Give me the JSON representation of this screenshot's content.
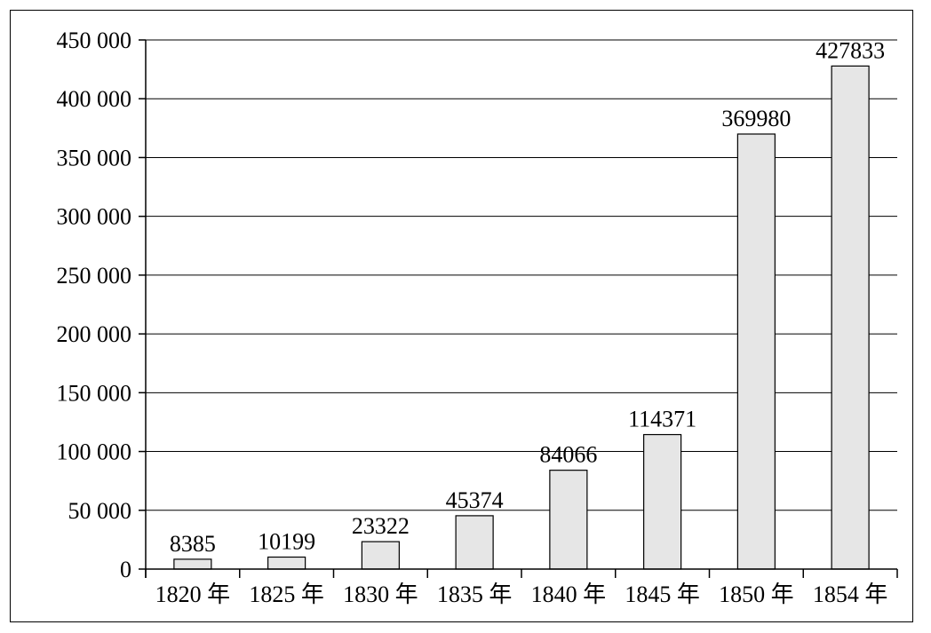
{
  "chart_data": {
    "type": "bar",
    "categories": [
      "1820 年",
      "1825 年",
      "1830 年",
      "1835 年",
      "1840 年",
      "1845 年",
      "1850 年",
      "1854 年"
    ],
    "values": [
      8385,
      10199,
      23322,
      45374,
      84066,
      114371,
      369980,
      427833
    ],
    "data_labels": [
      "8385",
      "10199",
      "23322",
      "45374",
      "84066",
      "114371",
      "369980",
      "427833"
    ],
    "y_ticks": [
      0,
      50000,
      100000,
      150000,
      200000,
      250000,
      300000,
      350000,
      400000,
      450000
    ],
    "y_tick_labels": [
      "0",
      "50 000",
      "100 000",
      "150 000",
      "200 000",
      "250 000",
      "300 000",
      "350 000",
      "400 000",
      "450 000"
    ],
    "ylim": [
      0,
      450000
    ],
    "grid": true,
    "legend": "none",
    "bar_color": "#e6e6e6"
  }
}
